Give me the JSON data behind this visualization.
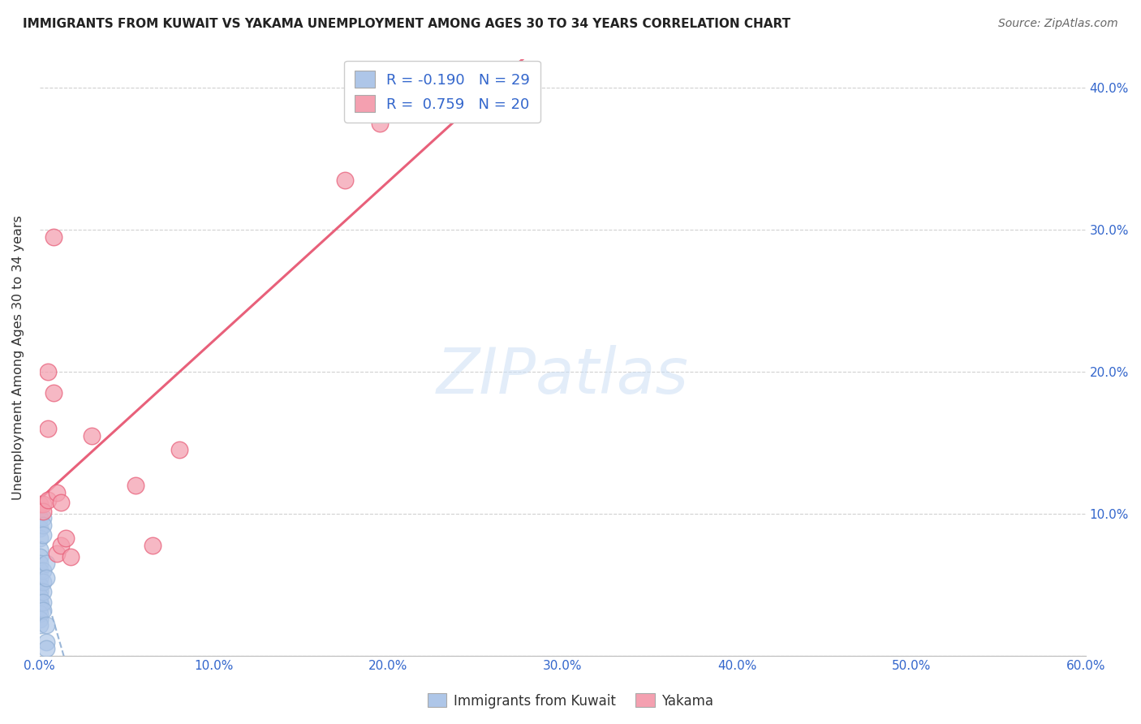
{
  "title": "IMMIGRANTS FROM KUWAIT VS YAKAMA UNEMPLOYMENT AMONG AGES 30 TO 34 YEARS CORRELATION CHART",
  "source": "Source: ZipAtlas.com",
  "ylabel": "Unemployment Among Ages 30 to 34 years",
  "watermark": "ZIPatlas",
  "xlim": [
    0.0,
    0.6
  ],
  "ylim": [
    0.0,
    0.42
  ],
  "x_ticks": [
    0.0,
    0.1,
    0.2,
    0.3,
    0.4,
    0.5,
    0.6
  ],
  "x_tick_labels": [
    "0.0%",
    "10.0%",
    "20.0%",
    "30.0%",
    "40.0%",
    "50.0%",
    "60.0%"
  ],
  "y_ticks": [
    0.0,
    0.1,
    0.2,
    0.3,
    0.4
  ],
  "y_tick_labels": [
    "",
    "10.0%",
    "20.0%",
    "30.0%",
    "40.0%"
  ],
  "kuwait_R": -0.19,
  "kuwait_N": 29,
  "yakama_R": 0.759,
  "yakama_N": 20,
  "kuwait_color": "#aec6e8",
  "yakama_color": "#f4a0b0",
  "kuwait_line_color": "#90afd4",
  "yakama_line_color": "#e8607a",
  "kuwait_scatter": [
    [
      0.0,
      0.097
    ],
    [
      0.0,
      0.09
    ],
    [
      0.0,
      0.083
    ],
    [
      0.0,
      0.075
    ],
    [
      0.0,
      0.07
    ],
    [
      0.0,
      0.065
    ],
    [
      0.0,
      0.06
    ],
    [
      0.0,
      0.055
    ],
    [
      0.0,
      0.05
    ],
    [
      0.0,
      0.046
    ],
    [
      0.0,
      0.042
    ],
    [
      0.0,
      0.038
    ],
    [
      0.0,
      0.034
    ],
    [
      0.0,
      0.03
    ],
    [
      0.0,
      0.026
    ],
    [
      0.0,
      0.022
    ],
    [
      0.002,
      0.097
    ],
    [
      0.002,
      0.092
    ],
    [
      0.002,
      0.085
    ],
    [
      0.002,
      0.06
    ],
    [
      0.002,
      0.052
    ],
    [
      0.002,
      0.045
    ],
    [
      0.002,
      0.038
    ],
    [
      0.002,
      0.032
    ],
    [
      0.004,
      0.065
    ],
    [
      0.004,
      0.055
    ],
    [
      0.004,
      0.022
    ],
    [
      0.004,
      0.01
    ],
    [
      0.004,
      0.005
    ]
  ],
  "yakama_scatter": [
    [
      0.0,
      0.107
    ],
    [
      0.002,
      0.107
    ],
    [
      0.002,
      0.102
    ],
    [
      0.005,
      0.2
    ],
    [
      0.005,
      0.16
    ],
    [
      0.005,
      0.11
    ],
    [
      0.008,
      0.295
    ],
    [
      0.008,
      0.185
    ],
    [
      0.01,
      0.115
    ],
    [
      0.01,
      0.072
    ],
    [
      0.012,
      0.108
    ],
    [
      0.012,
      0.078
    ],
    [
      0.015,
      0.083
    ],
    [
      0.018,
      0.07
    ],
    [
      0.03,
      0.155
    ],
    [
      0.055,
      0.12
    ],
    [
      0.065,
      0.078
    ],
    [
      0.08,
      0.145
    ],
    [
      0.175,
      0.335
    ],
    [
      0.195,
      0.375
    ]
  ]
}
